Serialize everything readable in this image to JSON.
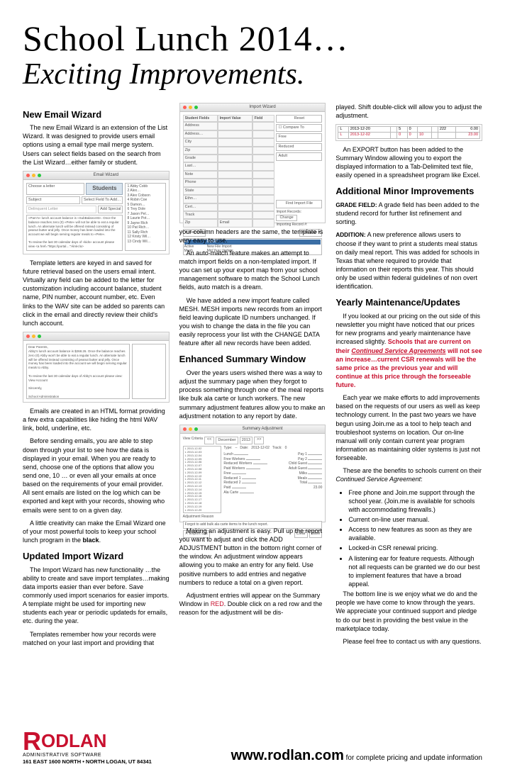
{
  "mast": {
    "title": "School Lunch 2014…",
    "subtitle": "Exciting Improvements."
  },
  "sections": {
    "emailWizard": "New Email Wizard",
    "importWizard": "Updated Import Wizard",
    "summaryWindow": "Enhanced Summary Window",
    "minor": "Additional Minor Improvements",
    "yearly": "Yearly Maintenance/Updates"
  },
  "col1": {
    "p1": "The new Email Wizard is an extension of the List Wizard. It was designed to provide users email options using a email type mail merge system. Users can select fields based on the search from the List Wizard…either family or student.",
    "p2": "Template letters are keyed in and saved for future retrieval based on the users email intent. Virtually any field can be added to the letter for customization including account balance, student name, PIN number, account number, etc. Even links to the WAV site can be added so parents can click in the email and directly review their child's lunch account.",
    "p3": "Emails are created in an HTML format providing a few extra capabilities like hiding the html WAV link, bold, underline, etc.",
    "p4": "Before sending emails, you are able to step down through your list to see how the data is displayed in your email. When you are ready to send, choose one of the options that allow you send one, 10 … or even all your emails at once based on the requirements of your email provider. All sent emails are listed on the log which can be exported and kept with your records, showing who emails were sent to on a given day.",
    "p5a": "A little creativity can make the Email Wizard one of your most powerful tools to keep your school lunch program in the ",
    "p5b": "black",
    "p5c": ".",
    "p6": "The Import Wizard has new functionality …the ability to create and save import templates…making data imports easier than ever before. Save commonly used import scenarios for easier imports. A template might be used for importing new students each year or periodic updateds for emails, etc. during the year.",
    "p7": "Templates remember how your records were matched on your last import and providing that"
  },
  "col2": {
    "p1": "your column headers are the same, the template is very easy to use.",
    "p2": "An auto-match feature makes an attempt to match import fields on a non-templated import. If you can set up your export map from your school management software to match the School Lunch fields, auto match is a dream.",
    "p3": "We have added a new import feature called MESH. MESH imports new records from an import field leaving duplicate ID numbers unchanged. If you wish to change the data in the file you can easily reprocess your list with the CHANGE DATA feature after all new records have been added.",
    "p4": "Over the years users wished there was a way to adjust the summary page when they forgot to process something through one of the meal reports like bulk ala carte or lunch workers. The new summary adjustment features allow you to make an adjustment notation to any report by date.",
    "p5": "Making an adjustment is easy. Pull up the report you want to adjust and click the ADD ADJUSTMENT button in the bottom right corner of the window. An adjustment window appears allowing you to make an entry for any field. Use positive numbers to add entries and negative numbers to reduce a total on a given report.",
    "p6a": "Adjustment entries will appear on the Summary Window in ",
    "p6b": "RED",
    "p6c": ". Double click on a red row and the reason for the adjustment will be dis-"
  },
  "col3": {
    "p1": "played. Shift double-click will allow you to adjust the adjustment.",
    "p2": "An EXPORT button has been added to the Summary Window allowing you to export the displayed information to a Tab-Delimited text file, easily opened in a spreadsheet program like Excel.",
    "grade_label": "GRADE FIELD:",
    "grade_text": " A grade field has been added to the studend record for further list refinement and sorting.",
    "addition_label": "ADDITION:",
    "addition_text": " A new preference allows users to choose if they want to print a students meal status on daily meal report. This was added for schools in Texas that where required to provide that information on their reports this year. This should only be used within federal guidelines of non overt identification.",
    "y1a": "If you looked at our pricing on the out side of this newsletter you might have noticed that our prices for new programs and yearly maintenance have increased slightly. ",
    "y1b": "Schools that are current on their ",
    "y1c": "Continued Service Agreements",
    "y1d": " will not see an increase…current CSR renewals will be the same price as the previous year and will continue at this price through the forseeable future.",
    "y2": "Each year we make efforts to add improvements based on the requests of our users as well as keep technology current. In the past two years we have begun using Join.me as a tool to help teach and troubleshoot systems on location. Our on-line manual will only contain current year program information as maintaining older systems is just not forseeable.",
    "y3a": "These are the benefits to schools current on their ",
    "y3b": "Continued Service Agreement",
    "y3c": ":",
    "bullets": [
      "Free phone and Join.me support through the school year. (Join.me is available for schools with accommodating firewalls.)",
      "Current on-line user manual.",
      "Access to new features as soon as they are available.",
      "Locked-in CSR renewal pricing.",
      "A listening ear for feature requests. Although not all requests can be granted we do our best to implement features that have a broad appeal."
    ],
    "y4": "The bottom line is we enjoy what we do and the people we have come to know through the years. We appreciate your continued support and pledge to do our best in providing the best value in the marketplace today.",
    "y5": "Please feel free to contact us with any questions."
  },
  "fig1": {
    "title": "Email Wizard",
    "panelLabel": "Students",
    "chooseLabel": "Choose a letter",
    "subjectLabel": "Subject",
    "selectFieldBtn": "Select Field To Add…",
    "addSpecialBtn": "Add Special",
    "names": [
      "Abby Cobb",
      "Alex…",
      "Alex Cobson",
      "Robin Coe",
      "Damon…",
      "Trey Dole",
      "Jason Pel…",
      "Laurie Pot…",
      "Jayne Rich",
      "Pat Rich…",
      "Sally Rich",
      "Kristy Wil…",
      "Cindy Wil…"
    ],
    "noteText": "«Pam's» lunch account balance is «SubBalanceSt». Once the balance reaches zero (0) «Pete» will not be able to eat a regular lunch. An alternate lunch will be offered instead consisting of peanut butter and jelly. Once money has been loaded into the account we will begin serving regular meals to «Pete».\n\nTo review the last 30 calendar days of «kids» account please view <a href=\"https://portal…\">link</a>\n\nSincerely,\n\nSchool Administration"
  },
  "fig2": {
    "headerLines": [
      "Dear Parents,",
      "Abby's lunch account balance is $268.26. Once the balance reaches zero (0) Abby won't be able to eat a regular lunch. An alternate lunch will be offered instead consisting of peanut butter and jelly. Once money has been loaded into the account we will begin serving regular meals to Abby.",
      "",
      "To review the last 30 calendar days of Abby's account please view: View Account",
      "",
      "Sincerely,",
      "",
      "School Administration"
    ]
  },
  "fig3": {
    "title": "Import Wizard",
    "colHeads": [
      "Student Fields",
      "Import Value",
      "Field"
    ],
    "leftFields": [
      "Address",
      "Address…",
      "City",
      "Zip",
      "Grade",
      "Last…",
      "Note",
      "Phone",
      "State",
      "Ethn…",
      "Cert…",
      "Track",
      "Zip"
    ],
    "rightFields": [
      "",
      "",
      "",
      "",
      "",
      "",
      "",
      "",
      "",
      "",
      "",
      "",
      "Email"
    ],
    "resetBtn": "Reset",
    "compareBtn": "Compare To",
    "freeLabel": "Free",
    "reducedLabel": "Reduced",
    "adultLabel": "Adult",
    "findBtn": "Find Import File",
    "importCountLabel": "Import Records:",
    "importCountBtn": "Change",
    "importNum": "Importing Record #:",
    "removeBtn": "Remove",
    "addMapBtn": "Add Map",
    "bottomItems": [
      "All",
      "Import",
      "Active",
      "New File Import",
      "Mesh",
      "Mid Year Update"
    ]
  },
  "fig4": {
    "title": "Summary Adjustment",
    "viewCriteria": "View Criteria",
    "month": "December",
    "year": "2013",
    "typeLabel": "Type:",
    "dateLabel": "Date:",
    "dateVal": "2013-12-02",
    "trackLabel": "Track:",
    "trackVal": "0",
    "rows": [
      "Lunch",
      "Free Workers",
      "Reduced Workers",
      "Paid Workers",
      "Free",
      "Reduced 1",
      "Reduced 2",
      "Paid",
      "Ala Carte"
    ],
    "rightRows": [
      "Pay 1",
      "Pay 2",
      "Child Guest",
      "Adult Guest",
      "Milks",
      "Meals",
      "Total"
    ],
    "total": "23.00",
    "adjLabel": "Adjustment Reason",
    "adjText": "Forgot to add bulk ala carte items to the lunch report.",
    "clearBtn": "Clear",
    "saveBtn": "Save",
    "exportBtn": "Export List"
  },
  "fig5": {
    "rows": [
      [
        "L",
        "2013-12-20",
        "",
        "5",
        "0",
        "",
        "",
        "222",
        "0.00"
      ],
      [
        "L",
        "2013-12-02",
        "",
        "0",
        "0",
        "10",
        "",
        "",
        "23.00"
      ]
    ]
  },
  "footer": {
    "brand": "ODLAN",
    "brandR": "R",
    "tag": "ADMINISTRATIVE SOFTWARE",
    "addr": "161 EAST 1600 NORTH • NORTH LOGAN, UT 84341",
    "url": "www.rodlan.com",
    "urlRest": " for complete pricing and update information"
  },
  "colors": {
    "accent": "#c8102e"
  }
}
